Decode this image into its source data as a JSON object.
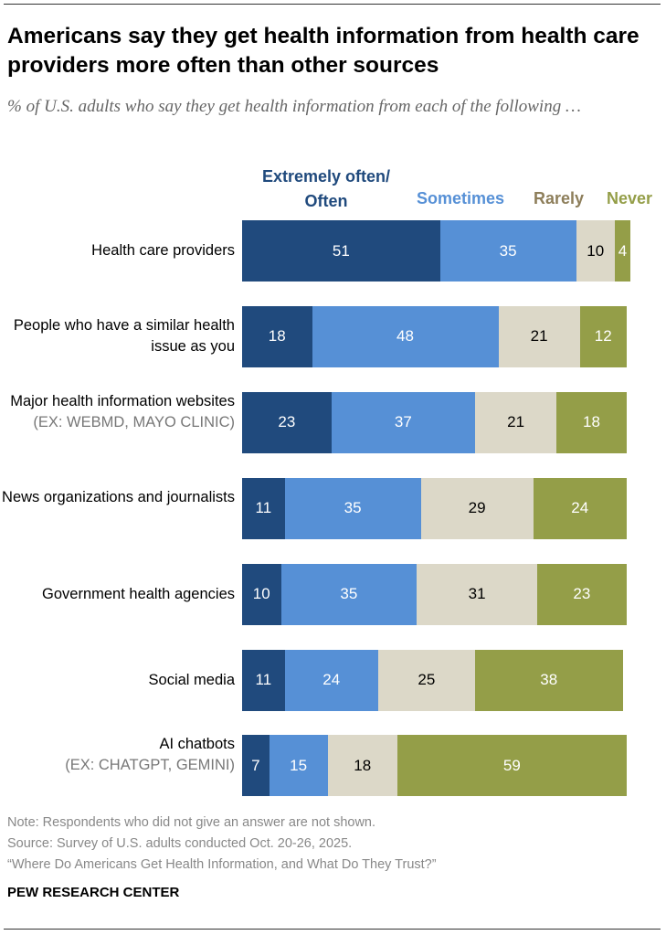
{
  "colors": {
    "often": "#204a7d",
    "sometimes": "#5690d6",
    "rarely": "#dcd8c8",
    "never": "#949e48",
    "rarely_label": "#8d7e5a"
  },
  "chart_data": {
    "type": "bar",
    "orientation": "horizontal-stacked",
    "title": "Americans say they get health information from health care providers more often than other sources",
    "subtitle": "% of U.S. adults who say they get health information from each of the following …",
    "legend": [
      "Extremely often/ Often",
      "Sometimes",
      "Rarely",
      "Never"
    ],
    "legend_placement": "top",
    "xlim": [
      0,
      100
    ],
    "categories": [
      {
        "label": "Health care providers",
        "sub": ""
      },
      {
        "label": "People who have a similar health issue as you",
        "sub": ""
      },
      {
        "label": "Major health information websites",
        "sub": "(EX: WEBMD, MAYO CLINIC)"
      },
      {
        "label": "News organizations and journalists",
        "sub": ""
      },
      {
        "label": "Government health agencies",
        "sub": ""
      },
      {
        "label": "Social media",
        "sub": ""
      },
      {
        "label": "AI chatbots",
        "sub": "(EX: CHATGPT, GEMINI)"
      }
    ],
    "series": [
      {
        "name": "Extremely often/ Often",
        "values": [
          51,
          18,
          23,
          11,
          10,
          11,
          7
        ]
      },
      {
        "name": "Sometimes",
        "values": [
          35,
          48,
          37,
          35,
          35,
          24,
          15
        ]
      },
      {
        "name": "Rarely",
        "values": [
          10,
          21,
          21,
          29,
          31,
          25,
          18
        ]
      },
      {
        "name": "Never",
        "values": [
          4,
          12,
          18,
          24,
          23,
          38,
          59
        ]
      }
    ]
  },
  "footer": {
    "note": "Note: Respondents who did not give an answer are not shown.",
    "source": "Source: Survey of U.S. adults conducted Oct. 20-26, 2025.",
    "report": "“Where Do Americans Get Health Information, and What Do They Trust?”",
    "brand": "PEW RESEARCH CENTER"
  }
}
